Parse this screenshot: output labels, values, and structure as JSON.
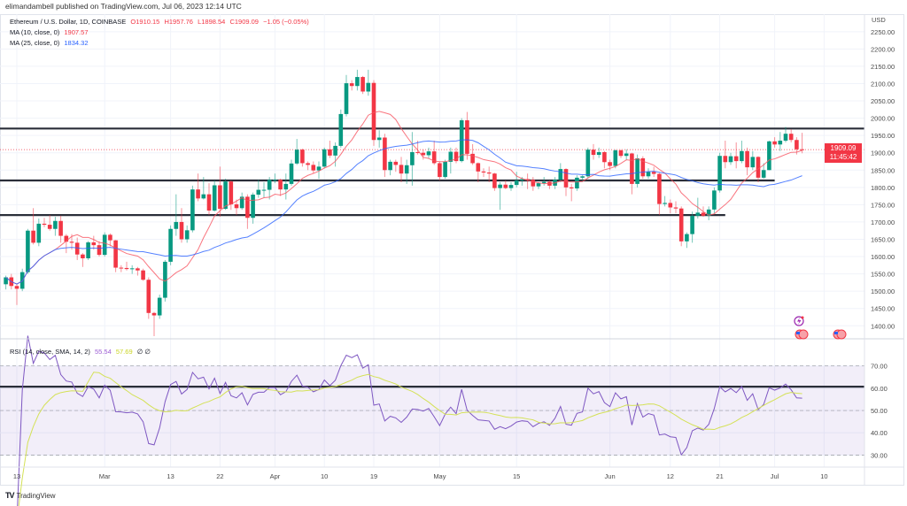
{
  "publisher": "elimandambell published on TradingView.com, Jul 06, 2023 12:14 UTC",
  "legend": {
    "symbol": "Ethereum / U.S. Dollar, 1D, COINBASE",
    "open": "O1910.15",
    "high": "H1957.76",
    "low": "L1898.54",
    "close": "C1909.09",
    "change": "−1.05 (−0.05%)",
    "ma10_label": "MA (10, close, 0)",
    "ma10_value": "1907.57",
    "ma25_label": "MA (25, close, 0)",
    "ma25_value": "1834.32",
    "rsi_label": "RSI (14, close, SMA, 14, 2)",
    "rsi_value": "55.54",
    "rsi_sma_value": "57.69",
    "rsi_extra": "∅ ∅"
  },
  "price_tag": {
    "price": "1909.09",
    "countdown": "11:45:42"
  },
  "footer": {
    "logo_text": "TradingView"
  },
  "colors": {
    "up": "#089981",
    "down": "#f23645",
    "ma10": "#f7525f",
    "ma25": "#2962ff",
    "rsi": "#7e57c2",
    "rsi_sma": "#d4e157",
    "rsi_band": "#7e57c2",
    "levels": "#2a2e39"
  },
  "chart_data": {
    "type": "candlestick",
    "title": "Ethereum / U.S. Dollar, 1D, COINBASE",
    "currency_label": "USD",
    "ylim": [
      1370,
      2270
    ],
    "yticks": [
      1400,
      1450,
      1500,
      1550,
      1600,
      1650,
      1700,
      1750,
      1800,
      1850,
      1900,
      1950,
      2000,
      2050,
      2100,
      2150,
      2200,
      2250
    ],
    "xticks": [
      {
        "label": "13",
        "date": "2023-02-13"
      },
      {
        "label": "Mar",
        "date": "2023-03-01"
      },
      {
        "label": "13",
        "date": "2023-03-13"
      },
      {
        "label": "22",
        "date": "2023-03-22"
      },
      {
        "label": "Apr",
        "date": "2023-04-01"
      },
      {
        "label": "10",
        "date": "2023-04-10"
      },
      {
        "label": "19",
        "date": "2023-04-19"
      },
      {
        "label": "May",
        "date": "2023-05-01"
      },
      {
        "label": "15",
        "date": "2023-05-15"
      },
      {
        "label": "Jun",
        "date": "2023-06-01"
      },
      {
        "label": "12",
        "date": "2023-06-12"
      },
      {
        "label": "21",
        "date": "2023-06-21"
      },
      {
        "label": "Jul",
        "date": "2023-07-01"
      },
      {
        "label": "10",
        "date": "2023-07-10"
      }
    ],
    "grid": true,
    "horizontal_levels": [
      {
        "price": 1970,
        "until": null
      },
      {
        "price": 1820,
        "until": "2023-07-01"
      },
      {
        "price": 1720,
        "until": "2023-06-22"
      }
    ],
    "candles_columns": [
      "date",
      "open",
      "high",
      "low",
      "close"
    ],
    "candles": [
      [
        "2023-02-11",
        1520,
        1545,
        1505,
        1540
      ],
      [
        "2023-02-12",
        1540,
        1550,
        1505,
        1515
      ],
      [
        "2023-02-13",
        1515,
        1520,
        1460,
        1507
      ],
      [
        "2023-02-14",
        1507,
        1565,
        1500,
        1555
      ],
      [
        "2023-02-15",
        1555,
        1680,
        1550,
        1675
      ],
      [
        "2023-02-16",
        1675,
        1740,
        1635,
        1640
      ],
      [
        "2023-02-17",
        1640,
        1710,
        1630,
        1695
      ],
      [
        "2023-02-18",
        1695,
        1712,
        1685,
        1692
      ],
      [
        "2023-02-19",
        1692,
        1720,
        1675,
        1680
      ],
      [
        "2023-02-20",
        1680,
        1715,
        1660,
        1703
      ],
      [
        "2023-02-21",
        1703,
        1718,
        1640,
        1660
      ],
      [
        "2023-02-22",
        1660,
        1665,
        1610,
        1643
      ],
      [
        "2023-02-23",
        1643,
        1665,
        1620,
        1640
      ],
      [
        "2023-02-24",
        1640,
        1655,
        1590,
        1606
      ],
      [
        "2023-02-25",
        1606,
        1610,
        1570,
        1595
      ],
      [
        "2023-02-26",
        1595,
        1645,
        1590,
        1641
      ],
      [
        "2023-02-27",
        1641,
        1660,
        1620,
        1633
      ],
      [
        "2023-02-28",
        1633,
        1645,
        1600,
        1605
      ],
      [
        "2023-03-01",
        1605,
        1670,
        1600,
        1663
      ],
      [
        "2023-03-02",
        1663,
        1667,
        1630,
        1647
      ],
      [
        "2023-03-03",
        1647,
        1648,
        1555,
        1568
      ],
      [
        "2023-03-04",
        1568,
        1575,
        1555,
        1567
      ],
      [
        "2023-03-05",
        1567,
        1585,
        1560,
        1564
      ],
      [
        "2023-03-06",
        1564,
        1575,
        1550,
        1566
      ],
      [
        "2023-03-07",
        1566,
        1570,
        1545,
        1560
      ],
      [
        "2023-03-08",
        1560,
        1565,
        1530,
        1533
      ],
      [
        "2023-03-09",
        1533,
        1540,
        1420,
        1437
      ],
      [
        "2023-03-10",
        1437,
        1440,
        1370,
        1430
      ],
      [
        "2023-03-11",
        1430,
        1490,
        1420,
        1481
      ],
      [
        "2023-03-12",
        1481,
        1590,
        1470,
        1585
      ],
      [
        "2023-03-13",
        1585,
        1690,
        1575,
        1680
      ],
      [
        "2023-03-14",
        1680,
        1780,
        1660,
        1700
      ],
      [
        "2023-03-15",
        1700,
        1740,
        1640,
        1650
      ],
      [
        "2023-03-16",
        1650,
        1690,
        1640,
        1676
      ],
      [
        "2023-03-17",
        1676,
        1805,
        1670,
        1794
      ],
      [
        "2023-03-18",
        1794,
        1840,
        1760,
        1768
      ],
      [
        "2023-03-19",
        1768,
        1830,
        1765,
        1780
      ],
      [
        "2023-03-20",
        1780,
        1812,
        1720,
        1733
      ],
      [
        "2023-03-21",
        1733,
        1820,
        1730,
        1806
      ],
      [
        "2023-03-22",
        1806,
        1860,
        1715,
        1738
      ],
      [
        "2023-03-23",
        1738,
        1825,
        1735,
        1817
      ],
      [
        "2023-03-24",
        1817,
        1820,
        1735,
        1751
      ],
      [
        "2023-03-25",
        1751,
        1765,
        1720,
        1740
      ],
      [
        "2023-03-26",
        1740,
        1785,
        1735,
        1773
      ],
      [
        "2023-03-27",
        1773,
        1780,
        1680,
        1712
      ],
      [
        "2023-03-28",
        1712,
        1785,
        1695,
        1779
      ],
      [
        "2023-03-29",
        1779,
        1822,
        1770,
        1793
      ],
      [
        "2023-03-30",
        1793,
        1815,
        1770,
        1793
      ],
      [
        "2023-03-31",
        1793,
        1830,
        1765,
        1822
      ],
      [
        "2023-04-01",
        1822,
        1840,
        1812,
        1822
      ],
      [
        "2023-04-02",
        1822,
        1825,
        1775,
        1794
      ],
      [
        "2023-04-03",
        1794,
        1840,
        1765,
        1810
      ],
      [
        "2023-04-04",
        1810,
        1880,
        1805,
        1869
      ],
      [
        "2023-04-05",
        1869,
        1940,
        1865,
        1909
      ],
      [
        "2023-04-06",
        1909,
        1912,
        1860,
        1870
      ],
      [
        "2023-04-07",
        1870,
        1875,
        1850,
        1865
      ],
      [
        "2023-04-08",
        1865,
        1875,
        1840,
        1849
      ],
      [
        "2023-04-09",
        1849,
        1875,
        1825,
        1860
      ],
      [
        "2023-04-10",
        1860,
        1915,
        1855,
        1910
      ],
      [
        "2023-04-11",
        1910,
        1935,
        1885,
        1892
      ],
      [
        "2023-04-12",
        1892,
        1930,
        1860,
        1920
      ],
      [
        "2023-04-13",
        1920,
        2025,
        1915,
        2012
      ],
      [
        "2023-04-14",
        2012,
        2125,
        2005,
        2101
      ],
      [
        "2023-04-15",
        2101,
        2110,
        2080,
        2093
      ],
      [
        "2023-04-16",
        2093,
        2140,
        2080,
        2119
      ],
      [
        "2023-04-17",
        2119,
        2122,
        2070,
        2077
      ],
      [
        "2023-04-18",
        2077,
        2140,
        2065,
        2102
      ],
      [
        "2023-04-19",
        2102,
        2110,
        1920,
        1937
      ],
      [
        "2023-04-20",
        1937,
        1965,
        1915,
        1944
      ],
      [
        "2023-04-21",
        1944,
        1955,
        1830,
        1850
      ],
      [
        "2023-04-22",
        1850,
        1880,
        1835,
        1874
      ],
      [
        "2023-04-23",
        1874,
        1880,
        1845,
        1865
      ],
      [
        "2023-04-24",
        1865,
        1888,
        1815,
        1840
      ],
      [
        "2023-04-25",
        1840,
        1880,
        1810,
        1864
      ],
      [
        "2023-04-26",
        1864,
        1960,
        1805,
        1902
      ],
      [
        "2023-04-27",
        1902,
        1935,
        1895,
        1900
      ],
      [
        "2023-04-28",
        1900,
        1910,
        1880,
        1893
      ],
      [
        "2023-04-29",
        1893,
        1915,
        1885,
        1904
      ],
      [
        "2023-04-30",
        1904,
        1935,
        1865,
        1870
      ],
      [
        "2023-05-01",
        1870,
        1875,
        1820,
        1830
      ],
      [
        "2023-05-02",
        1830,
        1880,
        1825,
        1874
      ],
      [
        "2023-05-03",
        1874,
        1915,
        1840,
        1903
      ],
      [
        "2023-05-04",
        1903,
        1915,
        1870,
        1876
      ],
      [
        "2023-05-05",
        1876,
        2000,
        1872,
        1994
      ],
      [
        "2023-05-06",
        1994,
        2018,
        1880,
        1897
      ],
      [
        "2023-05-07",
        1897,
        1925,
        1865,
        1870
      ],
      [
        "2023-05-08",
        1870,
        1872,
        1815,
        1846
      ],
      [
        "2023-05-09",
        1846,
        1855,
        1830,
        1843
      ],
      [
        "2023-05-10",
        1843,
        1860,
        1815,
        1840
      ],
      [
        "2023-05-11",
        1840,
        1842,
        1790,
        1798
      ],
      [
        "2023-05-12",
        1798,
        1815,
        1735,
        1808
      ],
      [
        "2023-05-13",
        1808,
        1820,
        1795,
        1798
      ],
      [
        "2023-05-14",
        1798,
        1815,
        1790,
        1807
      ],
      [
        "2023-05-15",
        1807,
        1845,
        1800,
        1820
      ],
      [
        "2023-05-16",
        1820,
        1830,
        1805,
        1824
      ],
      [
        "2023-05-17",
        1824,
        1840,
        1795,
        1822
      ],
      [
        "2023-05-18",
        1822,
        1830,
        1790,
        1803
      ],
      [
        "2023-05-19",
        1803,
        1815,
        1795,
        1812
      ],
      [
        "2023-05-20",
        1812,
        1830,
        1805,
        1816
      ],
      [
        "2023-05-21",
        1816,
        1820,
        1795,
        1805
      ],
      [
        "2023-05-22",
        1805,
        1830,
        1795,
        1822
      ],
      [
        "2023-05-23",
        1822,
        1870,
        1815,
        1853
      ],
      [
        "2023-05-24",
        1853,
        1855,
        1775,
        1800
      ],
      [
        "2023-05-25",
        1800,
        1810,
        1760,
        1797
      ],
      [
        "2023-05-26",
        1797,
        1835,
        1790,
        1828
      ],
      [
        "2023-05-27",
        1828,
        1835,
        1820,
        1832
      ],
      [
        "2023-05-28",
        1832,
        1915,
        1825,
        1909
      ],
      [
        "2023-05-29",
        1909,
        1925,
        1880,
        1894
      ],
      [
        "2023-05-30",
        1894,
        1915,
        1885,
        1902
      ],
      [
        "2023-05-31",
        1902,
        1905,
        1855,
        1873
      ],
      [
        "2023-06-01",
        1873,
        1880,
        1850,
        1862
      ],
      [
        "2023-06-02",
        1862,
        1910,
        1855,
        1907
      ],
      [
        "2023-06-03",
        1907,
        1910,
        1885,
        1891
      ],
      [
        "2023-06-04",
        1891,
        1910,
        1880,
        1898
      ],
      [
        "2023-06-05",
        1898,
        1900,
        1780,
        1810
      ],
      [
        "2023-06-06",
        1810,
        1895,
        1800,
        1884
      ],
      [
        "2023-06-07",
        1884,
        1890,
        1825,
        1832
      ],
      [
        "2023-06-08",
        1832,
        1855,
        1825,
        1845
      ],
      [
        "2023-06-09",
        1845,
        1860,
        1830,
        1839
      ],
      [
        "2023-06-10",
        1839,
        1842,
        1720,
        1752
      ],
      [
        "2023-06-11",
        1752,
        1775,
        1745,
        1755
      ],
      [
        "2023-06-12",
        1755,
        1765,
        1725,
        1742
      ],
      [
        "2023-06-13",
        1742,
        1760,
        1725,
        1739
      ],
      [
        "2023-06-14",
        1739,
        1745,
        1630,
        1644
      ],
      [
        "2023-06-15",
        1644,
        1670,
        1625,
        1665
      ],
      [
        "2023-06-16",
        1665,
        1730,
        1640,
        1718
      ],
      [
        "2023-06-17",
        1718,
        1770,
        1710,
        1727
      ],
      [
        "2023-06-18",
        1727,
        1745,
        1715,
        1718
      ],
      [
        "2023-06-19",
        1718,
        1745,
        1705,
        1736
      ],
      [
        "2023-06-20",
        1736,
        1800,
        1725,
        1791
      ],
      [
        "2023-06-21",
        1791,
        1900,
        1785,
        1891
      ],
      [
        "2023-06-22",
        1891,
        1935,
        1855,
        1873
      ],
      [
        "2023-06-23",
        1873,
        1900,
        1865,
        1890
      ],
      [
        "2023-06-24",
        1890,
        1930,
        1855,
        1876
      ],
      [
        "2023-06-25",
        1876,
        1935,
        1870,
        1905
      ],
      [
        "2023-06-26",
        1905,
        1915,
        1835,
        1858
      ],
      [
        "2023-06-27",
        1858,
        1905,
        1850,
        1888
      ],
      [
        "2023-06-28",
        1888,
        1890,
        1815,
        1828
      ],
      [
        "2023-06-29",
        1828,
        1870,
        1825,
        1850
      ],
      [
        "2023-06-30",
        1850,
        1935,
        1850,
        1933
      ],
      [
        "2023-07-01",
        1933,
        1945,
        1915,
        1924
      ],
      [
        "2023-07-02",
        1924,
        1960,
        1905,
        1935
      ],
      [
        "2023-07-03",
        1935,
        1975,
        1930,
        1955
      ],
      [
        "2023-07-04",
        1955,
        1968,
        1930,
        1937
      ],
      [
        "2023-07-05",
        1937,
        1945,
        1895,
        1910
      ],
      [
        "2023-07-06",
        1910.15,
        1957.76,
        1898.54,
        1909.09
      ]
    ],
    "indicators": {
      "ma": [
        {
          "period": 10,
          "source": "close"
        },
        {
          "period": 25,
          "source": "close"
        }
      ],
      "rsi": {
        "period": 14,
        "sma_period": 14,
        "ylim": [
          25,
          81
        ],
        "yticks": [
          30,
          40,
          50,
          60,
          70
        ],
        "band": [
          30,
          70
        ],
        "level_line": 60.7
      }
    }
  }
}
